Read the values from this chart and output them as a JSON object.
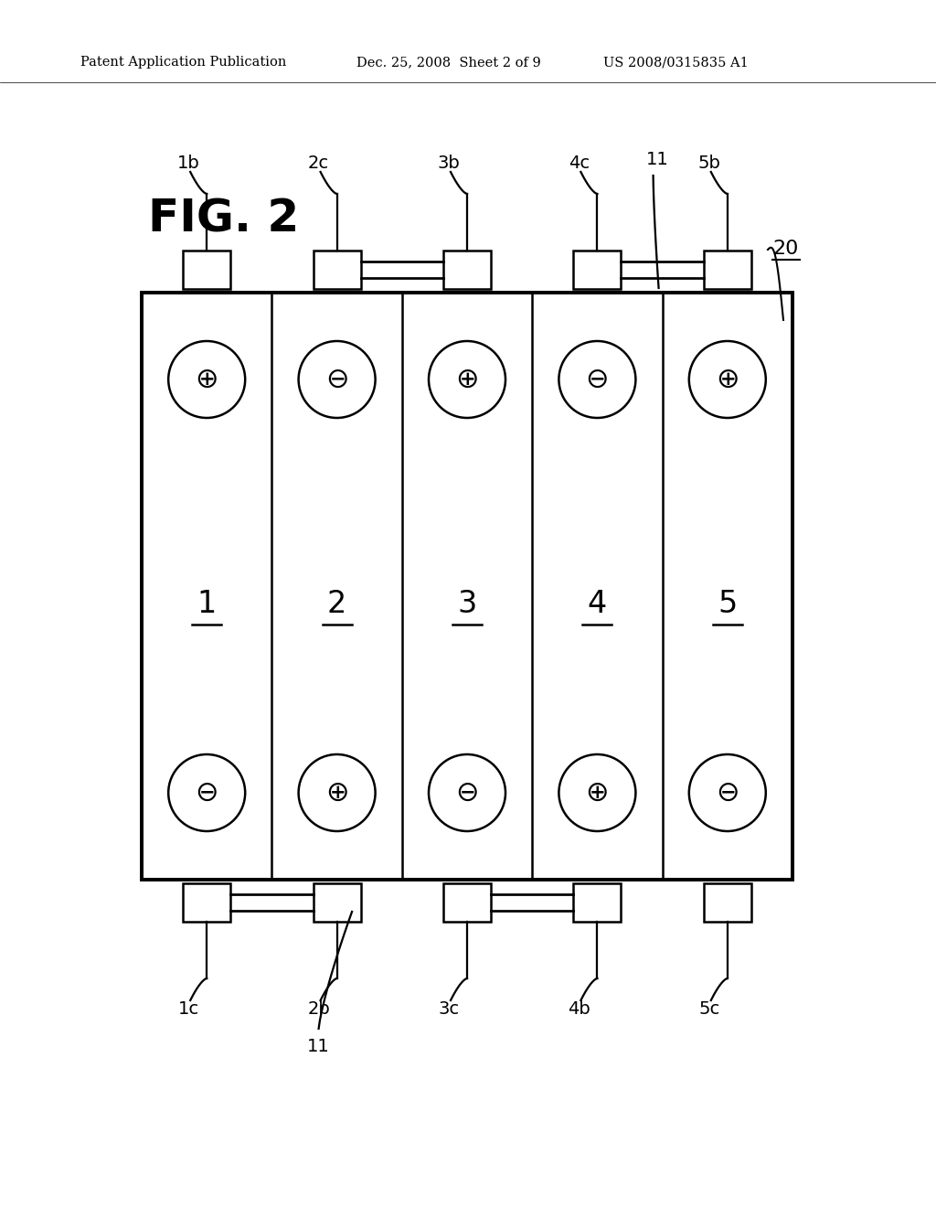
{
  "patent_header_left": "Patent Application Publication",
  "patent_header_mid": "Dec. 25, 2008  Sheet 2 of 9",
  "patent_header_right": "US 2008/0315835 A1",
  "background_color": "#ffffff",
  "fig_label": "FIG. 2",
  "num_cells": 5,
  "cell_labels": [
    "1",
    "2",
    "3",
    "4",
    "5"
  ],
  "top_terminal_labels": [
    "1b",
    "2c",
    "3b",
    "4c",
    "5b"
  ],
  "bottom_terminal_labels": [
    "1c",
    "2b",
    "3c",
    "4b",
    "5c"
  ],
  "top_polarities": [
    "⊕",
    "⊖",
    "⊕",
    "⊖",
    "⊕"
  ],
  "bottom_polarities": [
    "⊖",
    "⊕",
    "⊖",
    "⊕",
    "⊖"
  ],
  "figure_ref": "20",
  "connector_label": "11",
  "line_color": "#000000",
  "line_width": 1.8
}
